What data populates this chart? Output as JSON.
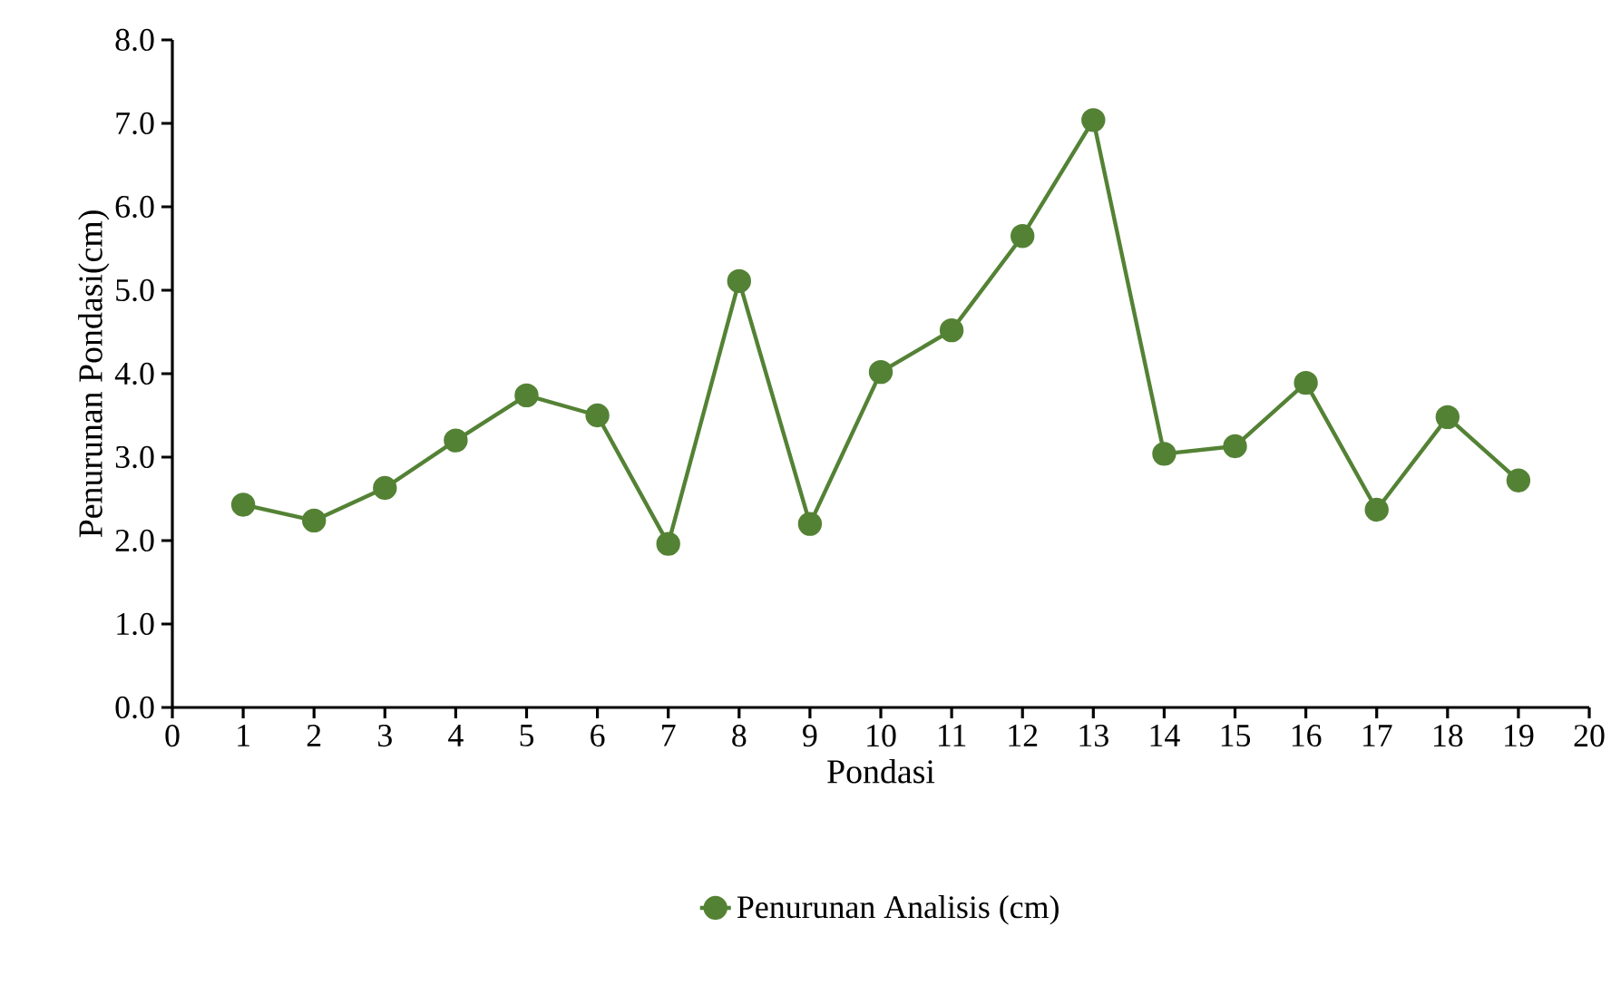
{
  "chart_data": {
    "type": "line",
    "xlabel": "Pondasi",
    "ylabel": "Penurunan Pondasi(cm)",
    "x": [
      1,
      2,
      3,
      4,
      5,
      6,
      7,
      8,
      9,
      10,
      11,
      12,
      13,
      14,
      15,
      16,
      17,
      18,
      19
    ],
    "series": [
      {
        "name": "Penurunan Analisis (cm)",
        "color": "#548235",
        "values": [
          2.43,
          2.24,
          2.63,
          3.2,
          3.74,
          3.5,
          1.96,
          5.11,
          2.2,
          4.02,
          4.52,
          5.65,
          7.04,
          3.04,
          3.13,
          3.89,
          2.37,
          3.48,
          2.72
        ]
      }
    ],
    "xlim": [
      0,
      20
    ],
    "xticks": [
      0,
      1,
      2,
      3,
      4,
      5,
      6,
      7,
      8,
      9,
      10,
      11,
      12,
      13,
      14,
      15,
      16,
      17,
      18,
      19,
      20
    ],
    "ylim": [
      0,
      8
    ],
    "yticks": [
      {
        "value": 0,
        "label": "0.0"
      },
      {
        "value": 1,
        "label": "1.0"
      },
      {
        "value": 2,
        "label": "2.0"
      },
      {
        "value": 3,
        "label": "3.0"
      },
      {
        "value": 4,
        "label": "4.0"
      },
      {
        "value": 5,
        "label": "5.0"
      },
      {
        "value": 6,
        "label": "6.0"
      },
      {
        "value": 7,
        "label": "7.0"
      },
      {
        "value": 8,
        "label": "8.0"
      }
    ],
    "grid": false,
    "legend": "bottom",
    "marker": "circle",
    "line_style": "solid"
  }
}
